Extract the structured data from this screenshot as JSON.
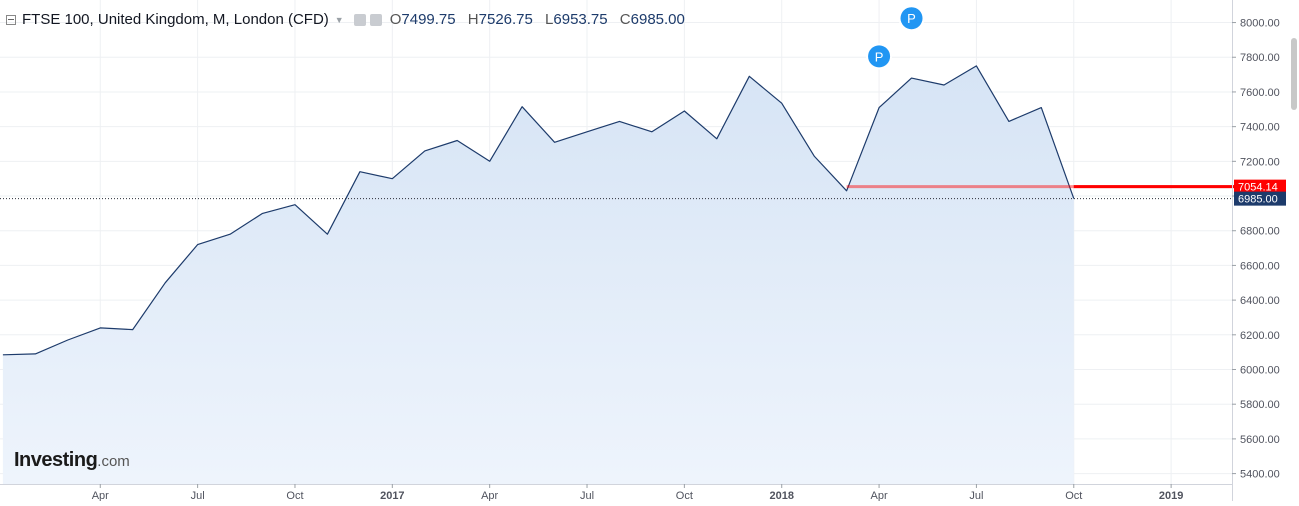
{
  "header": {
    "title": "FTSE 100, United Kingdom, M, London (CFD)",
    "ohlc": [
      {
        "label": "O",
        "value": "7499.75"
      },
      {
        "label": "H",
        "value": "7526.75"
      },
      {
        "label": "L",
        "value": "6953.75"
      },
      {
        "label": "C",
        "value": "6985.00"
      }
    ]
  },
  "logo": {
    "brand": "Investing",
    "suffix": ".com"
  },
  "colors": {
    "line": "#1d3b6b",
    "area_top": "#d6e4f5",
    "area_bottom": "#eef4fc",
    "price_line": "#ff0000",
    "last_price_bg": "#1d3b6b",
    "marker": "#2196f3",
    "grid": "#eef0f3"
  },
  "chart_data": {
    "type": "area",
    "x": [
      "2016-01",
      "2016-02",
      "2016-03",
      "2016-04",
      "2016-05",
      "2016-06",
      "2016-07",
      "2016-08",
      "2016-09",
      "2016-10",
      "2016-11",
      "2016-12",
      "2017-01",
      "2017-02",
      "2017-03",
      "2017-04",
      "2017-05",
      "2017-06",
      "2017-07",
      "2017-08",
      "2017-09",
      "2017-10",
      "2017-11",
      "2017-12",
      "2018-01",
      "2018-02",
      "2018-03",
      "2018-04",
      "2018-05",
      "2018-06",
      "2018-07",
      "2018-08",
      "2018-09",
      "2018-10"
    ],
    "y": [
      6085,
      6090,
      6170,
      6240,
      6230,
      6500,
      6720,
      6780,
      6900,
      6950,
      6780,
      7140,
      7100,
      7260,
      7320,
      7200,
      7515,
      7310,
      7370,
      7430,
      7370,
      7490,
      7330,
      7690,
      7535,
      7230,
      7030,
      7510,
      7680,
      7640,
      7750,
      7430,
      7510,
      6985
    ],
    "ylim": [
      5340,
      8130
    ],
    "y_ticks": [
      "5400.00",
      "5600.00",
      "5800.00",
      "6000.00",
      "6200.00",
      "6400.00",
      "6600.00",
      "6800.00",
      "7000.00",
      "7200.00",
      "7400.00",
      "7600.00",
      "7800.00",
      "8000.00"
    ],
    "x_ticks": [
      "Apr",
      "Jul",
      "Oct",
      "2017",
      "Apr",
      "Jul",
      "Oct",
      "2018",
      "Apr",
      "Jul",
      "Oct",
      "2019"
    ],
    "x_tick_months": [
      "2016-04",
      "2016-07",
      "2016-10",
      "2017-01",
      "2017-04",
      "2017-07",
      "2017-10",
      "2018-01",
      "2018-04",
      "2018-07",
      "2018-10",
      "2019-01"
    ],
    "last_price": {
      "value": 6985.0,
      "label": "6985.00"
    },
    "price_line": {
      "value": 7054.14,
      "label": "7054.14",
      "start": "2018-03"
    },
    "markers": [
      {
        "text": "P",
        "x": "2018-04",
        "y": 7805
      },
      {
        "text": "P",
        "x": "2018-05",
        "y": 8025
      }
    ],
    "grid": true
  }
}
